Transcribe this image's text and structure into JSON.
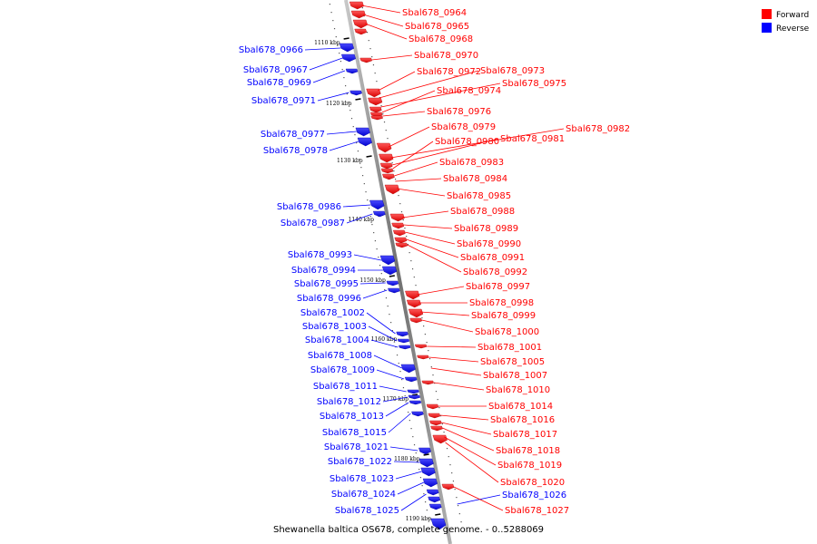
{
  "caption": "Shewanella baltica OS678, complete genome. - 0..5288069",
  "legend": [
    {
      "label": "Forward",
      "color": "#ff0000"
    },
    {
      "label": "Reverse",
      "color": "#0000ff"
    }
  ],
  "colors": {
    "forward": "#ff0000",
    "reverse": "#0000ff",
    "axis": "#888888"
  },
  "ticks": [
    "1110 kbp",
    "1120 kbp",
    "1130 kbp",
    "1140 kbp",
    "1150 kbp",
    "1160 kbp",
    "1170 kbp",
    "1180 kbp",
    "1190 kbp"
  ],
  "genes": [
    {
      "name": "Sbal678_0964",
      "strand": "forward"
    },
    {
      "name": "Sbal678_0965",
      "strand": "forward"
    },
    {
      "name": "Sbal678_0968",
      "strand": "forward"
    },
    {
      "name": "Sbal678_0970",
      "strand": "forward"
    },
    {
      "name": "Sbal678_0972",
      "strand": "forward"
    },
    {
      "name": "Sbal678_0973",
      "strand": "forward"
    },
    {
      "name": "Sbal678_0975",
      "strand": "forward"
    },
    {
      "name": "Sbal678_0974",
      "strand": "forward"
    },
    {
      "name": "Sbal678_0976",
      "strand": "forward"
    },
    {
      "name": "Sbal678_0979",
      "strand": "forward"
    },
    {
      "name": "Sbal678_0982",
      "strand": "forward"
    },
    {
      "name": "Sbal678_0981",
      "strand": "forward"
    },
    {
      "name": "Sbal678_0980",
      "strand": "forward"
    },
    {
      "name": "Sbal678_0983",
      "strand": "forward"
    },
    {
      "name": "Sbal678_0984",
      "strand": "forward"
    },
    {
      "name": "Sbal678_0985",
      "strand": "forward"
    },
    {
      "name": "Sbal678_0988",
      "strand": "forward"
    },
    {
      "name": "Sbal678_0989",
      "strand": "forward"
    },
    {
      "name": "Sbal678_0990",
      "strand": "forward"
    },
    {
      "name": "Sbal678_0991",
      "strand": "forward"
    },
    {
      "name": "Sbal678_0992",
      "strand": "forward"
    },
    {
      "name": "Sbal678_0997",
      "strand": "forward"
    },
    {
      "name": "Sbal678_0998",
      "strand": "forward"
    },
    {
      "name": "Sbal678_0999",
      "strand": "forward"
    },
    {
      "name": "Sbal678_1000",
      "strand": "forward"
    },
    {
      "name": "Sbal678_1001",
      "strand": "forward"
    },
    {
      "name": "Sbal678_1005",
      "strand": "forward"
    },
    {
      "name": "Sbal678_1007",
      "strand": "forward"
    },
    {
      "name": "Sbal678_1010",
      "strand": "forward"
    },
    {
      "name": "Sbal678_1014",
      "strand": "forward"
    },
    {
      "name": "Sbal678_1016",
      "strand": "forward"
    },
    {
      "name": "Sbal678_1017",
      "strand": "forward"
    },
    {
      "name": "Sbal678_1018",
      "strand": "forward"
    },
    {
      "name": "Sbal678_1019",
      "strand": "forward"
    },
    {
      "name": "Sbal678_1020",
      "strand": "forward"
    },
    {
      "name": "Sbal678_1026",
      "strand": "reverse"
    },
    {
      "name": "Sbal678_1027",
      "strand": "forward"
    },
    {
      "name": "Sbal678_0966",
      "strand": "reverse"
    },
    {
      "name": "Sbal678_0967",
      "strand": "reverse"
    },
    {
      "name": "Sbal678_0969",
      "strand": "reverse"
    },
    {
      "name": "Sbal678_0971",
      "strand": "reverse"
    },
    {
      "name": "Sbal678_0977",
      "strand": "reverse"
    },
    {
      "name": "Sbal678_0978",
      "strand": "reverse"
    },
    {
      "name": "Sbal678_0986",
      "strand": "reverse"
    },
    {
      "name": "Sbal678_0987",
      "strand": "reverse"
    },
    {
      "name": "Sbal678_0993",
      "strand": "reverse"
    },
    {
      "name": "Sbal678_0994",
      "strand": "reverse"
    },
    {
      "name": "Sbal678_0995",
      "strand": "reverse"
    },
    {
      "name": "Sbal678_0996",
      "strand": "reverse"
    },
    {
      "name": "Sbal678_1002",
      "strand": "reverse"
    },
    {
      "name": "Sbal678_1003",
      "strand": "reverse"
    },
    {
      "name": "Sbal678_1004",
      "strand": "reverse"
    },
    {
      "name": "Sbal678_1008",
      "strand": "reverse"
    },
    {
      "name": "Sbal678_1009",
      "strand": "reverse"
    },
    {
      "name": "Sbal678_1011",
      "strand": "reverse"
    },
    {
      "name": "Sbal678_1012",
      "strand": "reverse"
    },
    {
      "name": "Sbal678_1013",
      "strand": "reverse"
    },
    {
      "name": "Sbal678_1015",
      "strand": "reverse"
    },
    {
      "name": "Sbal678_1021",
      "strand": "reverse"
    },
    {
      "name": "Sbal678_1022",
      "strand": "reverse"
    },
    {
      "name": "Sbal678_1023",
      "strand": "reverse"
    },
    {
      "name": "Sbal678_1024",
      "strand": "reverse"
    },
    {
      "name": "Sbal678_1025",
      "strand": "reverse"
    }
  ]
}
